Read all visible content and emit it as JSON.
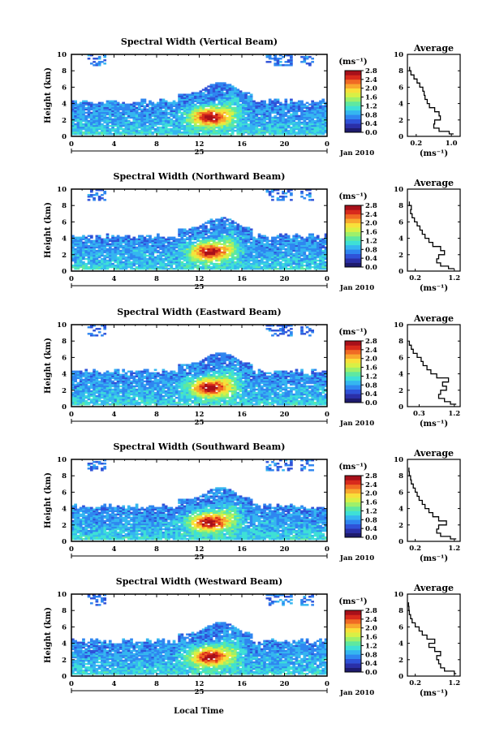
{
  "figure": {
    "x_axis_title": "Local Time",
    "colors": {
      "colormap": [
        "#1e1b6e",
        "#2a2fa8",
        "#2f52d8",
        "#2f86f0",
        "#35b6f0",
        "#3ee0d6",
        "#5fe8a0",
        "#9ef06a",
        "#d8f045",
        "#f8e03a",
        "#f8a82e",
        "#f06a24",
        "#d82a1c",
        "#a8101a"
      ],
      "profile_line": "#000000"
    }
  },
  "chart_data": [
    {
      "type": "heatmap",
      "title": "Spectral Width (Vertical Beam)",
      "ylabel": "Height (km)",
      "xlabel": "",
      "x_ticks": [
        "0",
        "4",
        "8",
        "12",
        "16",
        "20",
        "0"
      ],
      "xlim": [
        0,
        24
      ],
      "y_ticks": [
        "0",
        "2",
        "4",
        "6",
        "8",
        "10"
      ],
      "ylim": [
        0,
        10
      ],
      "day_label": "25",
      "date_label": "Jan 2010",
      "colorbar": {
        "unit": "(ms⁻¹)",
        "ticks": [
          "0.0",
          "0.4",
          "0.8",
          "1.2",
          "1.6",
          "2.0",
          "2.4",
          "2.8"
        ],
        "range": [
          0,
          2.8
        ]
      },
      "profile": {
        "title": "Average",
        "xlabel": "(ms⁻¹)",
        "x_ticks": [
          "0.2",
          "1.0"
        ],
        "y_ticks": [
          "0",
          "2",
          "4",
          "6",
          "8",
          "10"
        ],
        "xlim": [
          0,
          1.2
        ],
        "ylim": [
          0,
          10
        ],
        "height": [
          0.3,
          0.6,
          1.0,
          1.5,
          2.0,
          2.5,
          3.0,
          3.5,
          4.0,
          4.5,
          5.0,
          5.5,
          6.0,
          6.5,
          7.0,
          7.5,
          8.0,
          8.5
        ],
        "width": [
          1.05,
          0.95,
          0.72,
          0.6,
          0.62,
          0.75,
          0.72,
          0.62,
          0.5,
          0.45,
          0.4,
          0.38,
          0.35,
          0.28,
          0.22,
          0.15,
          0.08,
          0.05
        ]
      }
    },
    {
      "type": "heatmap",
      "title": "Spectral Width (Northward Beam)",
      "ylabel": "Height (km)",
      "xlabel": "",
      "x_ticks": [
        "0",
        "4",
        "8",
        "12",
        "16",
        "20",
        "0"
      ],
      "xlim": [
        0,
        24
      ],
      "y_ticks": [
        "0",
        "2",
        "4",
        "6",
        "8",
        "10"
      ],
      "ylim": [
        0,
        10
      ],
      "day_label": "25",
      "date_label": "Jan 2010",
      "colorbar": {
        "unit": "(ms⁻¹)",
        "ticks": [
          "0.0",
          "0.4",
          "0.8",
          "1.2",
          "1.6",
          "2.0",
          "2.4",
          "2.8"
        ],
        "range": [
          0,
          2.8
        ]
      },
      "profile": {
        "title": "Average",
        "xlabel": "(ms⁻¹)",
        "x_ticks": [
          "0.2",
          "1.2"
        ],
        "y_ticks": [
          "0",
          "2",
          "4",
          "6",
          "8",
          "10"
        ],
        "xlim": [
          0,
          1.35
        ],
        "ylim": [
          0,
          10
        ],
        "height": [
          0.3,
          0.6,
          1.0,
          1.5,
          2.0,
          2.5,
          3.0,
          3.5,
          4.0,
          4.5,
          5.0,
          5.5,
          6.0,
          6.5,
          7.0,
          7.5,
          8.0,
          8.5
        ],
        "width": [
          1.2,
          1.05,
          0.85,
          0.75,
          0.8,
          0.95,
          0.85,
          0.65,
          0.55,
          0.45,
          0.38,
          0.32,
          0.25,
          0.18,
          0.12,
          0.08,
          0.1,
          0.05
        ]
      }
    },
    {
      "type": "heatmap",
      "title": "Spectral Width (Eastward Beam)",
      "ylabel": "Height (km)",
      "xlabel": "",
      "x_ticks": [
        "0",
        "4",
        "8",
        "12",
        "16",
        "20",
        "0"
      ],
      "xlim": [
        0,
        24
      ],
      "y_ticks": [
        "0",
        "2",
        "4",
        "6",
        "8",
        "10"
      ],
      "ylim": [
        0,
        10
      ],
      "day_label": "25",
      "date_label": "Jan 2010",
      "colorbar": {
        "unit": "(ms⁻¹)",
        "ticks": [
          "0.0",
          "0.4",
          "0.8",
          "1.2",
          "1.6",
          "2.0",
          "2.4",
          "2.8"
        ],
        "range": [
          0,
          2.8
        ]
      },
      "profile": {
        "title": "Average",
        "xlabel": "(ms⁻¹)",
        "x_ticks": [
          "0.3",
          "1.2"
        ],
        "y_ticks": [
          "0",
          "2",
          "4",
          "6",
          "8",
          "10"
        ],
        "xlim": [
          0,
          1.35
        ],
        "ylim": [
          0,
          10
        ],
        "height": [
          0.3,
          0.6,
          1.0,
          1.5,
          2.0,
          2.5,
          3.0,
          3.5,
          4.0,
          4.5,
          5.0,
          5.5,
          6.0,
          6.5,
          7.0,
          7.5,
          8.0
        ],
        "width": [
          1.25,
          1.1,
          0.95,
          0.8,
          0.85,
          1.0,
          0.9,
          1.05,
          0.75,
          0.6,
          0.5,
          0.4,
          0.35,
          0.25,
          0.15,
          0.1,
          0.05
        ]
      }
    },
    {
      "type": "heatmap",
      "title": "Spectral Width (Southward Beam)",
      "ylabel": "Height (km)",
      "xlabel": "",
      "x_ticks": [
        "0",
        "4",
        "8",
        "12",
        "16",
        "20",
        "0"
      ],
      "xlim": [
        0,
        24
      ],
      "y_ticks": [
        "0",
        "2",
        "4",
        "6",
        "8",
        "10"
      ],
      "ylim": [
        0,
        10
      ],
      "day_label": "25",
      "date_label": "Jan 2010",
      "colorbar": {
        "unit": "(ms⁻¹)",
        "ticks": [
          "0.0",
          "0.4",
          "0.8",
          "1.2",
          "1.6",
          "2.0",
          "2.4",
          "2.8"
        ],
        "range": [
          0,
          2.8
        ]
      },
      "profile": {
        "title": "Average",
        "xlabel": "(ms⁻¹)",
        "x_ticks": [
          "0.2",
          "1.2"
        ],
        "y_ticks": [
          "0",
          "2",
          "4",
          "6",
          "8",
          "10"
        ],
        "xlim": [
          0,
          1.35
        ],
        "ylim": [
          0,
          10
        ],
        "height": [
          0.3,
          0.6,
          1.0,
          1.5,
          2.0,
          2.5,
          3.0,
          3.5,
          4.0,
          4.5,
          5.0,
          5.5,
          6.0,
          6.5,
          7.0,
          7.5,
          8.0,
          8.5,
          9.0
        ],
        "width": [
          1.25,
          1.1,
          0.85,
          0.75,
          0.8,
          1.0,
          0.8,
          0.65,
          0.55,
          0.45,
          0.38,
          0.3,
          0.25,
          0.2,
          0.15,
          0.1,
          0.08,
          0.05,
          0.04
        ]
      }
    },
    {
      "type": "heatmap",
      "title": "Spectral Width (Westward Beam)",
      "ylabel": "Height (km)",
      "xlabel": "",
      "x_ticks": [
        "0",
        "4",
        "8",
        "12",
        "16",
        "20",
        "0"
      ],
      "xlim": [
        0,
        24
      ],
      "y_ticks": [
        "0",
        "2",
        "4",
        "6",
        "8",
        "10"
      ],
      "ylim": [
        0,
        10
      ],
      "day_label": "25",
      "date_label": "Jan 2010",
      "colorbar": {
        "unit": "(ms⁻¹)",
        "ticks": [
          "0.0",
          "0.4",
          "0.8",
          "1.2",
          "1.6",
          "2.0",
          "2.4",
          "2.8"
        ],
        "range": [
          0,
          2.8
        ]
      },
      "profile": {
        "title": "Average",
        "xlabel": "(ms⁻¹)",
        "x_ticks": [
          "0.2",
          "1.2"
        ],
        "y_ticks": [
          "0",
          "2",
          "4",
          "6",
          "8",
          "10"
        ],
        "xlim": [
          0,
          1.35
        ],
        "ylim": [
          0,
          10
        ],
        "height": [
          0.3,
          0.6,
          1.0,
          1.5,
          2.0,
          2.5,
          3.0,
          3.5,
          4.0,
          4.5,
          5.0,
          5.5,
          6.0,
          6.5,
          7.0,
          7.5,
          8.0,
          8.5,
          9.0
        ],
        "width": [
          1.25,
          1.2,
          0.95,
          0.85,
          0.8,
          0.75,
          0.85,
          0.7,
          0.55,
          0.7,
          0.5,
          0.38,
          0.3,
          0.2,
          0.12,
          0.08,
          0.05,
          0.04,
          0.03
        ]
      }
    }
  ]
}
